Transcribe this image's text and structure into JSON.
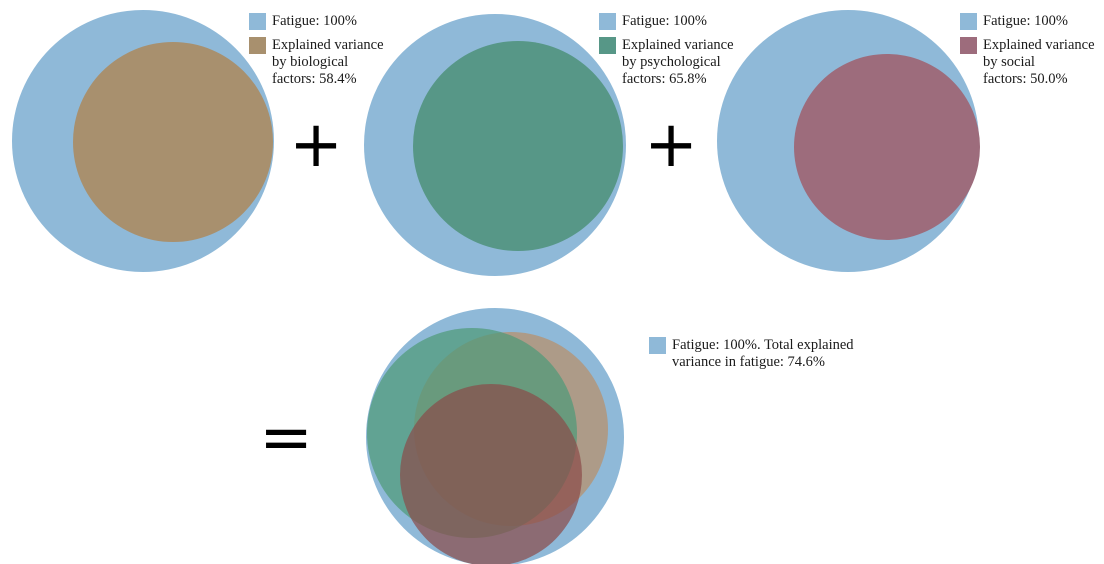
{
  "colors": {
    "fatigue": "#8fb9d8",
    "biological": "#a8906e",
    "psychological": "#579787",
    "social": "#9d6c7c",
    "combined_biological": "#b88f6a",
    "combined_psychological": "#4f9a78",
    "combined_social": "#8a4a48",
    "operator": "#000000"
  },
  "panels": [
    {
      "id": "biological",
      "fatigue_label": "Fatigue: 100%",
      "factor_label": "Explained variance\nby biological\nfactors: 58.4%",
      "explained_fraction": 0.584
    },
    {
      "id": "psychological",
      "fatigue_label": "Fatigue: 100%",
      "factor_label": "Explained variance\nby psychological\nfactors: 65.8%",
      "explained_fraction": 0.658
    },
    {
      "id": "social",
      "fatigue_label": "Fatigue: 100%",
      "factor_label": "Explained variance\nby social\nfactors: 50.0%",
      "explained_fraction": 0.5
    }
  ],
  "combined": {
    "label": "Fatigue: 100%. Total explained\nvariance in fatigue: 74.6%",
    "total_explained_fraction": 0.746
  },
  "operators": {
    "plus": "+",
    "equals": "="
  }
}
